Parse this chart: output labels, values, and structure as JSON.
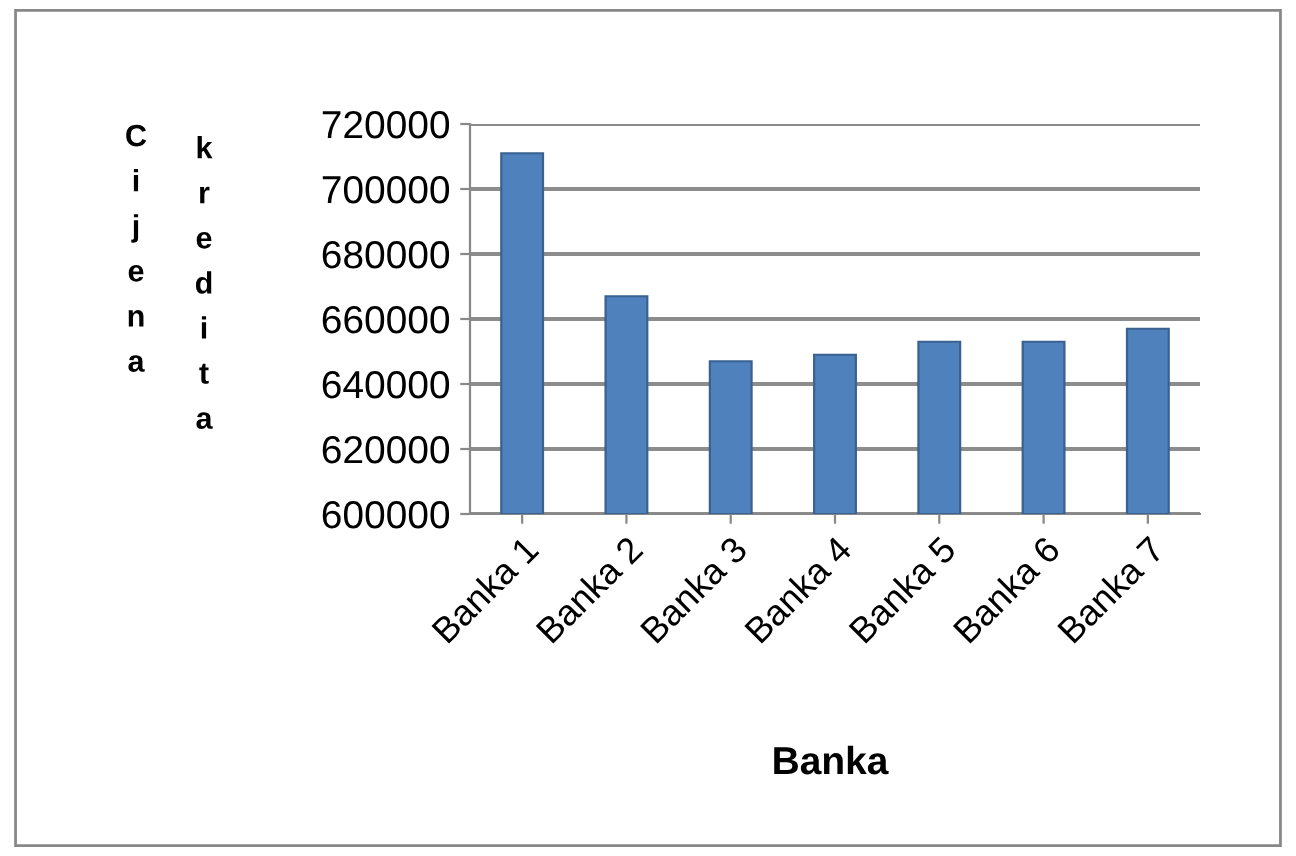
{
  "chart_data": {
    "type": "bar",
    "xlabel": "Banka",
    "ylabel": "Cijena kredita",
    "categories": [
      "Banka 1",
      "Banka 2",
      "Banka 3",
      "Banka 4",
      "Banka 5",
      "Banka 6",
      "Banka 7"
    ],
    "values": [
      711000,
      667000,
      647000,
      649000,
      653000,
      653000,
      657000
    ],
    "color": "#4f81bd",
    "ylim": [
      600000,
      720000
    ],
    "yticks": [
      600000,
      620000,
      640000,
      660000,
      680000,
      700000,
      720000
    ],
    "grid": "y",
    "legend": false
  }
}
